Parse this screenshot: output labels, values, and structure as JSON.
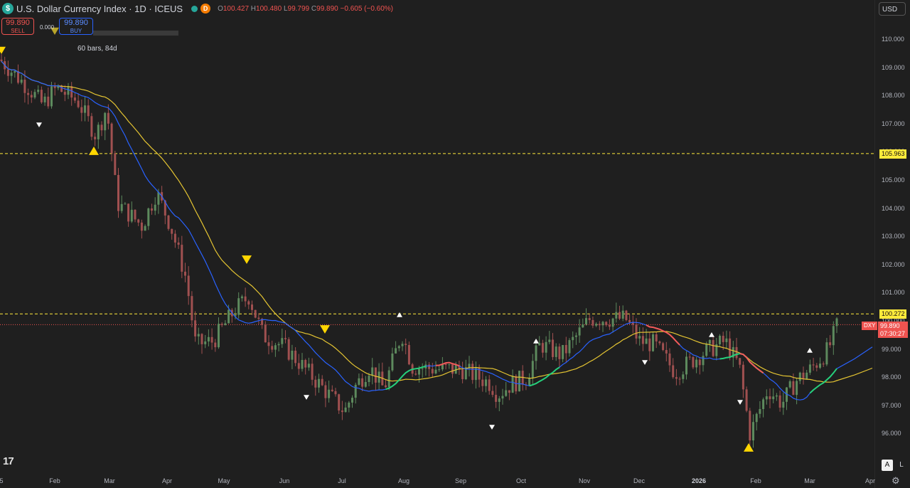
{
  "header": {
    "symbol_icon": "$",
    "title": "U.S. Dollar Currency Index · 1D · ICEUS",
    "d_badge": "D",
    "o_key": "O",
    "o_val": "100.427",
    "h_key": "H",
    "h_val": "100.480",
    "l_key": "L",
    "l_val": "99.799",
    "c_key": "C",
    "c_val": "99.890",
    "change": "−0.605 (−0.60%)"
  },
  "trade": {
    "sell_price": "99.890",
    "sell_label": "SELL",
    "buy_price": "99.890",
    "buy_label": "BUY",
    "spread": "0.000"
  },
  "annotation": {
    "bars_label": "60 bars, 84d"
  },
  "currency_button": "USD",
  "price_axis": {
    "ticks": [
      "110.000",
      "109.000",
      "108.000",
      "107.000",
      "106.000",
      "105.000",
      "104.000",
      "103.000",
      "102.000",
      "101.000",
      "100.000",
      "99.000",
      "98.000",
      "97.000",
      "96.000"
    ],
    "labels": [
      {
        "text": "105.963",
        "color": "#ffeb3b"
      },
      {
        "text": "100.272",
        "color": "#ffeb3b"
      }
    ],
    "current": {
      "symbol": "DXY",
      "price": "99.890",
      "countdown": "07:30:27",
      "color": "#ef5350"
    }
  },
  "time_axis": {
    "ticks": [
      "5",
      "Feb",
      "Mar",
      "Apr",
      "May",
      "Jun",
      "Jul",
      "Aug",
      "Sep",
      "Oct",
      "Nov",
      "Dec",
      "2026",
      "Feb",
      "Mar",
      "Apr"
    ]
  },
  "footer": {
    "logo": "17",
    "auto_button": "A",
    "log_button": "L",
    "settings_icon": "gear-icon"
  },
  "chart_data": {
    "type": "candlestick",
    "symbol": "DXY",
    "interval": "1D",
    "ylim": [
      95.2,
      111.2
    ],
    "horizontal_levels": [
      105.963,
      100.272
    ],
    "current_price": 99.89,
    "last_ohlc": {
      "open": 100.427,
      "high": 100.48,
      "low": 99.799,
      "close": 99.89
    },
    "x_labels": [
      "Feb",
      "Mar",
      "Apr",
      "May",
      "Jun",
      "Jul",
      "Aug",
      "Sep",
      "Oct",
      "Nov",
      "Dec",
      "2026",
      "Feb",
      "Mar",
      "Apr"
    ],
    "close_path": [
      [
        "Jan 2025",
        109.3
      ],
      [
        "Feb 2025",
        108.2
      ],
      [
        "Feb 2025",
        107.4
      ],
      [
        "Mar 2025",
        107.6
      ],
      [
        "Mar 2025",
        104.2
      ],
      [
        "Apr 2025",
        103.4
      ],
      [
        "Apr 2025",
        99.8
      ],
      [
        "May 2025",
        99.2
      ],
      [
        "May 2025",
        101.0
      ],
      [
        "Jun 2025",
        99.1
      ],
      [
        "Jun 2025",
        98.3
      ],
      [
        "Jul 2025",
        96.9
      ],
      [
        "Jul 2025",
        98.4
      ],
      [
        "Aug 2025",
        98.3
      ],
      [
        "Sep 2025",
        97.9
      ],
      [
        "Sep 2025",
        97.3
      ],
      [
        "Oct 2025",
        98.2
      ],
      [
        "Oct 2025",
        98.8
      ],
      [
        "Nov 2025",
        100.1
      ],
      [
        "Nov 2025",
        100.1
      ],
      [
        "Dec 2025",
        99.1
      ],
      [
        "Dec 2025",
        98.2
      ],
      [
        "Jan 2026",
        99.3
      ],
      [
        "Jan 2026",
        98.4
      ],
      [
        "Jan 2026",
        96.2
      ],
      [
        "Feb 2026",
        97.2
      ],
      [
        "Feb 2026",
        97.9
      ],
      [
        "Mar 2026",
        98.3
      ],
      [
        "Mar 2026",
        99.89
      ]
    ],
    "series": [
      {
        "kind": "moving-average",
        "color": "#2962ff"
      },
      {
        "kind": "moving-average",
        "color": "#e4c432"
      }
    ],
    "markers": [
      {
        "shape": "triangle-up",
        "color": "#ffd600",
        "time": "Feb 2025"
      },
      {
        "shape": "triangle-down",
        "color": "#ffd600",
        "time": "May 2025"
      },
      {
        "shape": "triangle-down",
        "color": "#ffd600",
        "time": "Jun 2025"
      },
      {
        "shape": "triangle-up",
        "color": "#ffd600",
        "time": "Jan 2026"
      }
    ],
    "colors": {
      "up": "#5d8a5d",
      "down": "#a05050",
      "background": "#1f1f1f"
    }
  }
}
